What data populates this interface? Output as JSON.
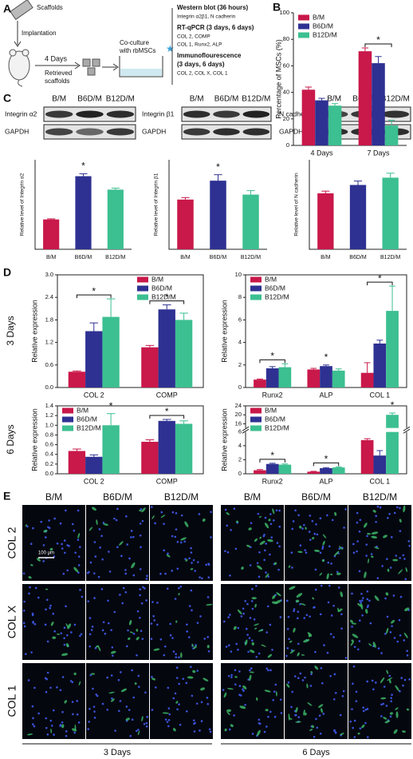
{
  "panel_labels": [
    "A",
    "B",
    "C",
    "D",
    "E"
  ],
  "schematic": {
    "scaffolds": "Scaffolds",
    "implantation": "Implantation",
    "duration": "4 Days",
    "retrieved": [
      "Retrieved",
      "scaffolds"
    ],
    "coculture": [
      "Co-culture",
      "with rbMSCs"
    ],
    "methods": [
      {
        "title": [
          "Western blot (36 hours)"
        ],
        "items": [
          "Integrin α2β1, N cadherin"
        ]
      },
      {
        "title": [
          "RT-qPCR (3 days, 6 days)"
        ],
        "items": [
          "COL 2, COMP",
          "COL 1, Runx2, ALP"
        ]
      },
      {
        "title": [
          "Immunoflourescence",
          "(3 days, 6 days)"
        ],
        "items": [
          "COL 2, COL X, COL 1"
        ]
      }
    ]
  },
  "blots": [
    {
      "columns": [
        "B/M",
        "B6D/M",
        "B12D/M"
      ],
      "rows": [
        "Integrin α2",
        "GAPDH"
      ]
    },
    {
      "columns": [
        "B/M",
        "B6D/M",
        "B12D/M"
      ],
      "rows": [
        "Integrin β1",
        "GAPDH"
      ]
    },
    {
      "columns": [
        "B/M",
        "B6D/M",
        "B12D/M"
      ],
      "rows": [
        "N cadherin",
        "GAPDH"
      ]
    }
  ],
  "chart_data": [
    {
      "type": "bar",
      "ylabel": "Percentage of MSCs (%)",
      "categories": [
        "4 Days",
        "7 Days"
      ],
      "series": [
        {
          "name": "B/M",
          "color": "#c9184a",
          "values": [
            42,
            71
          ],
          "errors": [
            2,
            2.5
          ]
        },
        {
          "name": "B6D/M",
          "color": "#2e3192",
          "values": [
            34,
            62
          ],
          "errors": [
            1.5,
            5
          ]
        },
        {
          "name": "B12D/M",
          "color": "#3cbf91",
          "values": [
            30,
            15
          ],
          "errors": [
            1.5,
            4
          ]
        }
      ],
      "ylim": [
        0,
        100
      ],
      "yticks": [
        0,
        20,
        40,
        60,
        80,
        100
      ],
      "annotations": [
        "*"
      ]
    },
    {
      "type": "bar",
      "ylabel": "Relative level of Integrin α2",
      "categories": [
        "B/M",
        "B6D/M",
        "B12D/M"
      ],
      "values": [
        1.0,
        2.45,
        2.0
      ],
      "errors": [
        0.02,
        0.08,
        0.05
      ],
      "colors": [
        "#c9184a",
        "#2e3192",
        "#3cbf91"
      ],
      "ylim": [
        0,
        3
      ],
      "annotations": [
        "*"
      ]
    },
    {
      "type": "bar",
      "ylabel": "Relative level of Integrin β1",
      "categories": [
        "B/M",
        "B6D/M",
        "B12D/M"
      ],
      "values": [
        1.0,
        1.38,
        1.1
      ],
      "errors": [
        0.04,
        0.12,
        0.08
      ],
      "colors": [
        "#c9184a",
        "#2e3192",
        "#3cbf91"
      ],
      "ylim": [
        0,
        1.8
      ],
      "annotations": [
        "*"
      ]
    },
    {
      "type": "bar",
      "ylabel": "Relative level of N cadherin",
      "categories": [
        "B/M",
        "B6D/M",
        "B12D/M"
      ],
      "values": [
        1.0,
        1.15,
        1.28
      ],
      "errors": [
        0.04,
        0.07,
        0.08
      ],
      "colors": [
        "#c9184a",
        "#2e3192",
        "#3cbf91"
      ],
      "ylim": [
        0,
        1.6
      ]
    },
    {
      "type": "bar",
      "ylabel": "Relative expression",
      "categories": [
        "COL 2",
        "COMP"
      ],
      "series": [
        {
          "name": "B/M",
          "color": "#c9184a",
          "values": [
            0.42,
            1.07
          ],
          "errors": [
            0.02,
            0.05
          ]
        },
        {
          "name": "B6D/M",
          "color": "#2e3192",
          "values": [
            1.5,
            2.08
          ],
          "errors": [
            0.22,
            0.12
          ]
        },
        {
          "name": "B12D/M",
          "color": "#3cbf91",
          "values": [
            1.88,
            1.8
          ],
          "errors": [
            0.48,
            0.18
          ]
        }
      ],
      "ylim": [
        0,
        3.0
      ],
      "yticks": [
        {
          "value": 0,
          "label": "0.0"
        },
        0.6,
        1.2,
        1.8,
        2.4,
        {
          "value": 3,
          "label": "3.0"
        }
      ],
      "annotations": [
        "*",
        "*"
      ]
    },
    {
      "type": "bar",
      "ylabel": "Relative expression",
      "categories": [
        "Runx2",
        "ALP",
        "COL 1"
      ],
      "series": [
        {
          "name": "B/M",
          "color": "#c9184a",
          "values": [
            0.7,
            1.6,
            1.3
          ],
          "errors": [
            0.05,
            0.1,
            0.9
          ]
        },
        {
          "name": "B6D/M",
          "color": "#2e3192",
          "values": [
            1.7,
            1.9,
            3.9
          ],
          "errors": [
            0.15,
            0.1,
            0.3
          ]
        },
        {
          "name": "B12D/M",
          "color": "#3cbf91",
          "values": [
            1.8,
            1.5,
            6.8
          ],
          "errors": [
            0.3,
            0.15,
            2.2
          ]
        }
      ],
      "ylim": [
        0,
        10
      ],
      "yticks": [
        0,
        2,
        4,
        6,
        8,
        10
      ],
      "annotations": [
        "*",
        "*",
        "*"
      ]
    },
    {
      "type": "bar",
      "ylabel": "Relative expression",
      "categories": [
        "COL 2",
        "COMP"
      ],
      "series": [
        {
          "name": "B/M",
          "color": "#c9184a",
          "values": [
            0.47,
            0.66
          ],
          "errors": [
            0.04,
            0.04
          ]
        },
        {
          "name": "B6D/M",
          "color": "#2e3192",
          "values": [
            0.35,
            1.09
          ],
          "errors": [
            0.04,
            0.03
          ]
        },
        {
          "name": "B12D/M",
          "color": "#3cbf91",
          "values": [
            1.0,
            1.03
          ],
          "errors": [
            0.24,
            0.06
          ]
        }
      ],
      "ylim": [
        0,
        1.4
      ],
      "yticks": [
        {
          "value": 0,
          "label": "0.0"
        },
        0.2,
        0.4,
        0.6,
        0.8,
        {
          "value": 1,
          "label": "1.0"
        },
        1.2,
        1.4
      ],
      "annotations": [
        "*",
        "*"
      ]
    },
    {
      "type": "bar",
      "ylabel": "Relative expression",
      "categories": [
        "Runx2",
        "ALP",
        "COL 1"
      ],
      "series": [
        {
          "name": "B/M",
          "color": "#c9184a",
          "values": [
            0.5,
            0.3,
            4.8
          ],
          "errors": [
            0.1,
            0.05,
            0.2
          ]
        },
        {
          "name": "B6D/M",
          "color": "#2e3192",
          "values": [
            1.4,
            0.8,
            2.6
          ],
          "errors": [
            0.1,
            0.08,
            0.7
          ]
        },
        {
          "name": "B12D/M",
          "color": "#3cbf91",
          "values": [
            1.3,
            0.9,
            20
          ],
          "errors": [
            0.1,
            0.08,
            0.8
          ]
        }
      ],
      "ylim": [
        0,
        24
      ],
      "yticks": [
        0,
        2,
        4,
        6,
        16,
        20,
        24
      ],
      "annotations": [
        "*",
        "*",
        "*"
      ]
    }
  ],
  "day_labels": [
    "3 Days",
    "6 Days"
  ],
  "images": {
    "columns": [
      "B/M",
      "B6D/M",
      "B12D/M",
      "B/M",
      "B6D/M",
      "B12D/M"
    ],
    "rows": [
      "COL 2",
      "COL X",
      "COL 1"
    ],
    "scale_bar": "100 μm",
    "groups": [
      "3 Days",
      "6 Days"
    ]
  }
}
